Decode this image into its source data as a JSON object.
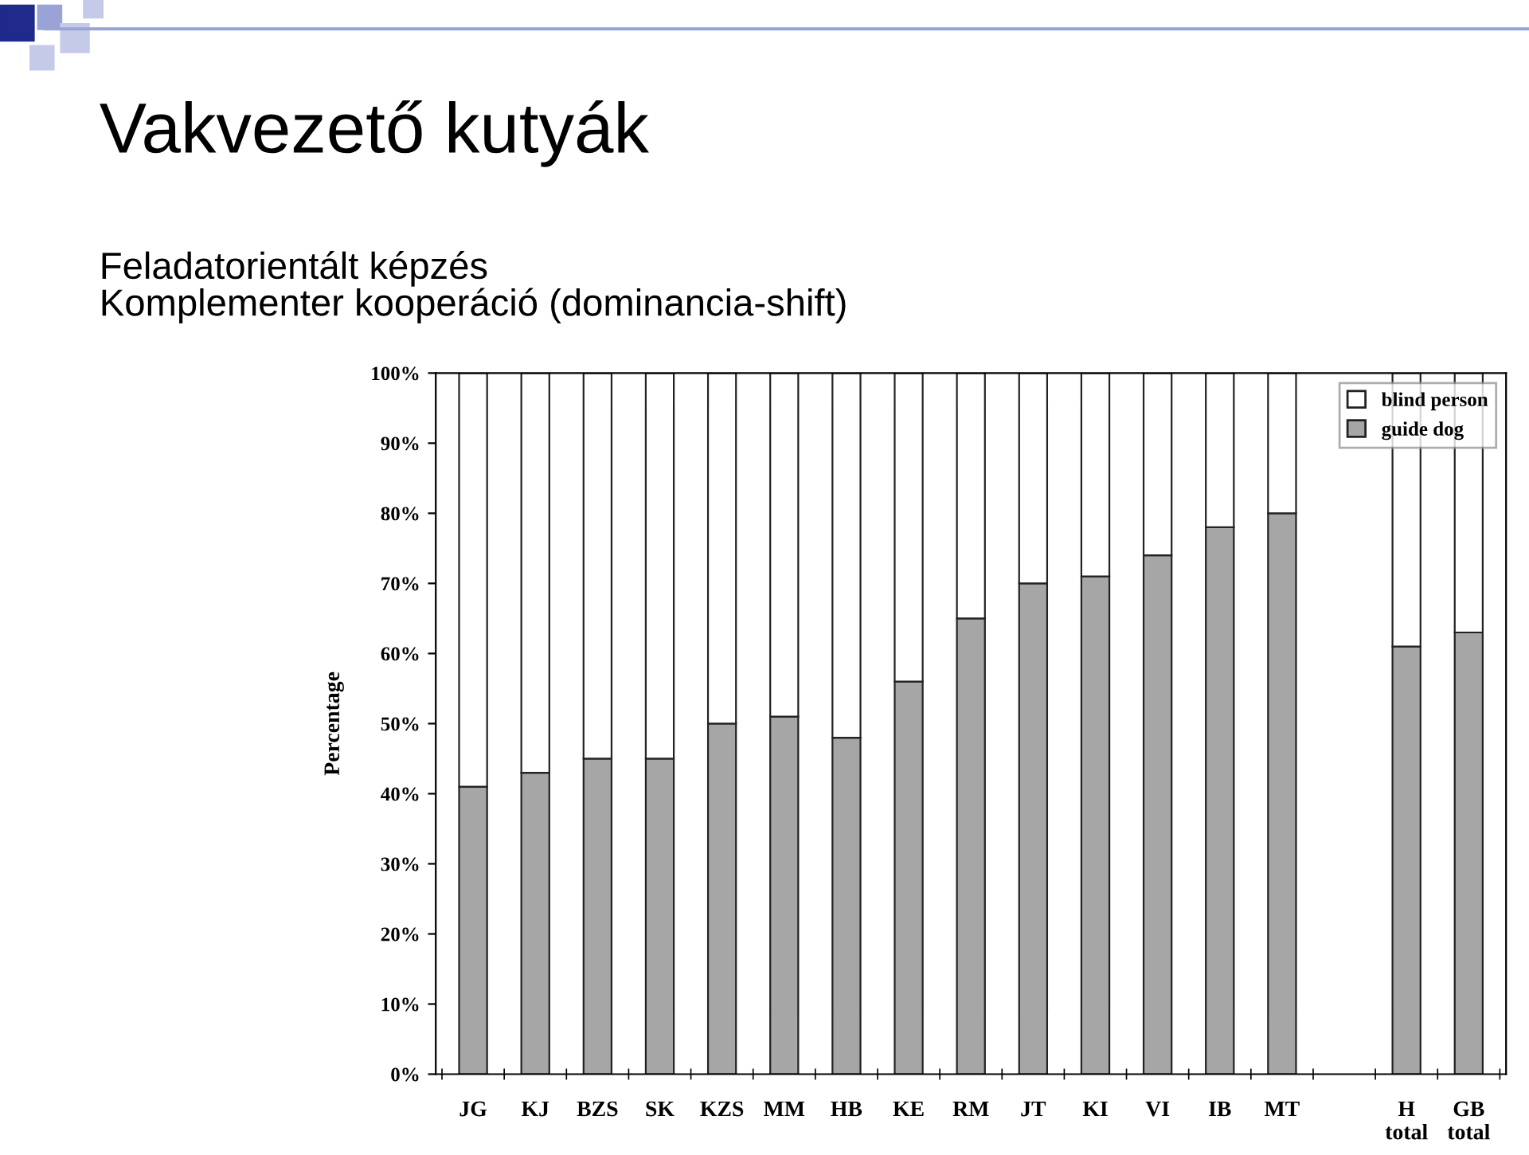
{
  "chart_data": {
    "type": "bar",
    "stacked": true,
    "title": "Vakvezető kutyák",
    "subtitle": "Feladatorientált képzés\nKomplementer kooperáció (dominancia-shift)",
    "ylabel": "Percentage",
    "categories": [
      "JG",
      "KJ",
      "BZS",
      "SK",
      "KZS",
      "MM",
      "HB",
      "KE",
      "RM",
      "JT",
      "KI",
      "VI",
      "IB",
      "MT",
      null,
      "H\ntotal",
      "GB\ntotal"
    ],
    "series": [
      {
        "name": "guide dog",
        "color": "#a6a6a6",
        "values": [
          41,
          43,
          45,
          45,
          50,
          51,
          48,
          56,
          65,
          70,
          71,
          74,
          78,
          80,
          null,
          61,
          63
        ]
      },
      {
        "name": "blind person",
        "color": "#ffffff",
        "values": [
          59,
          57,
          55,
          55,
          50,
          49,
          52,
          44,
          35,
          30,
          29,
          26,
          22,
          20,
          null,
          39,
          37
        ]
      }
    ],
    "ylim": [
      0,
      100
    ],
    "yticks": [
      {
        "value": 0,
        "label": "0%"
      },
      {
        "value": 10,
        "label": "10%"
      },
      {
        "value": 20,
        "label": "20%"
      },
      {
        "value": 30,
        "label": "30%"
      },
      {
        "value": 40,
        "label": "40%"
      },
      {
        "value": 50,
        "label": "50%"
      },
      {
        "value": 60,
        "label": "60%"
      },
      {
        "value": 70,
        "label": "70%"
      },
      {
        "value": 80,
        "label": "80%"
      },
      {
        "value": 90,
        "label": "90%"
      },
      {
        "value": 100,
        "label": "100%"
      }
    ],
    "grid": false,
    "legend": "top right"
  }
}
